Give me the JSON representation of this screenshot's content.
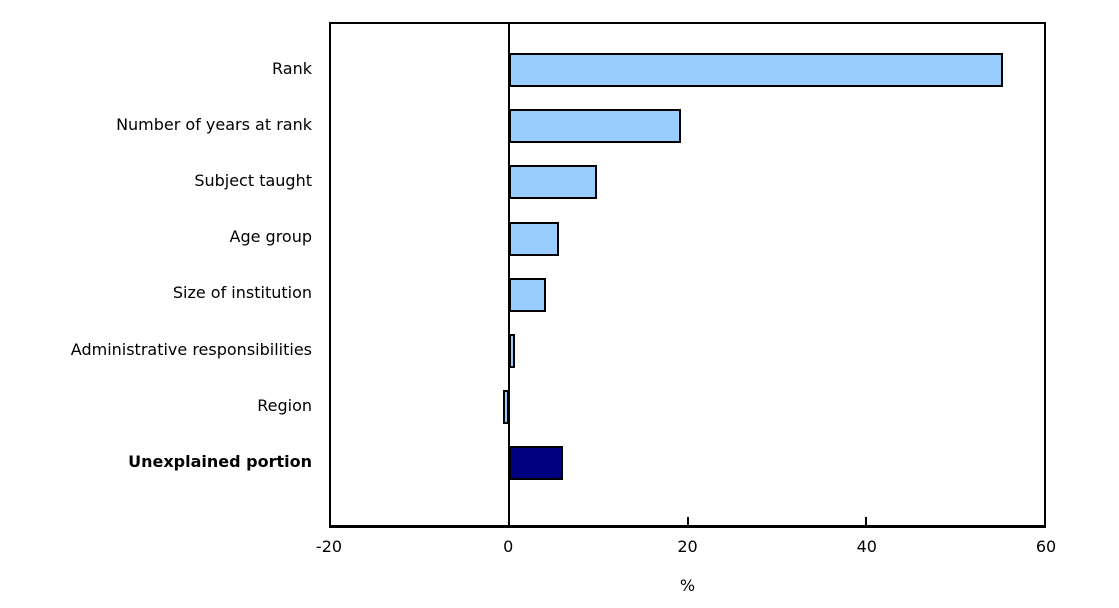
{
  "chart_data": {
    "type": "bar",
    "orientation": "horizontal",
    "categories": [
      "Rank",
      "Number of years at rank",
      "Subject taught",
      "Age group",
      "Size of institution",
      "Administrative responsibilities",
      "Region",
      "Unexplained portion"
    ],
    "values": [
      55.4,
      19.3,
      9.8,
      5.6,
      4.1,
      0.6,
      -0.7,
      6.0
    ],
    "xlabel": "%",
    "xlim": [
      -20,
      60
    ],
    "xticks": [
      -20,
      0,
      20,
      40,
      60
    ],
    "xtick_labels": [
      "-20",
      "0",
      "20",
      "40",
      "60"
    ],
    "grid": false,
    "zero_line": true,
    "legend": "none",
    "highlight": {
      "category": "Unexplained portion",
      "color": "#000080",
      "bold_label": true
    },
    "colors": {
      "bar_fill": "#99CCFF",
      "bar_border": "#000000",
      "axis": "#000000",
      "text": "#000000",
      "background": "#FFFFFF"
    }
  }
}
